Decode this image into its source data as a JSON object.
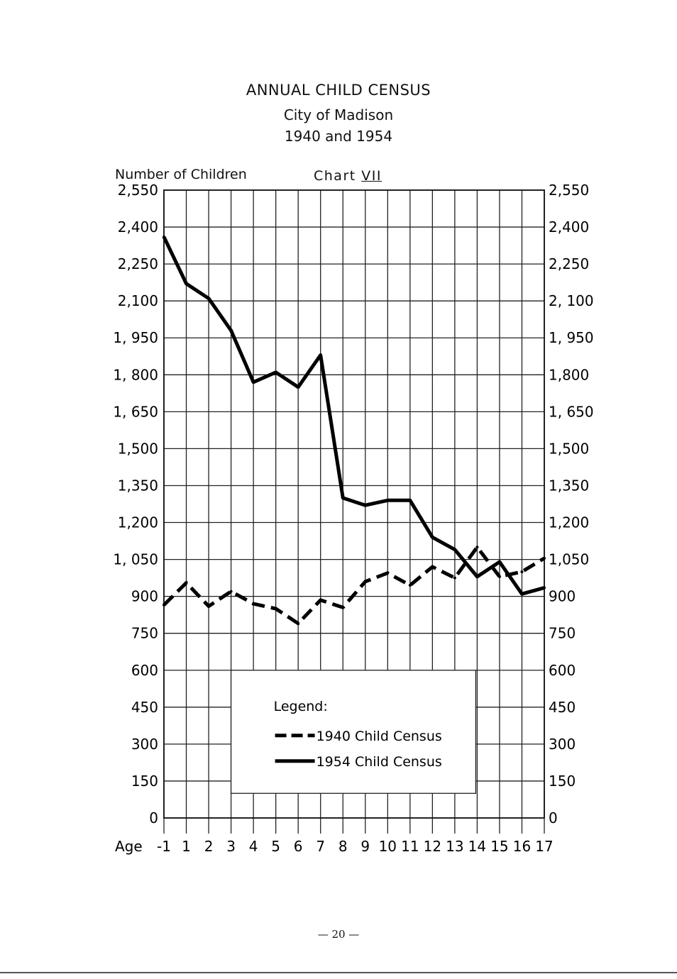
{
  "page": {
    "title": "ANNUAL CHILD CENSUS",
    "subtitle_1": "City of Madison",
    "subtitle_2": "1940 and 1954",
    "chart_label": "Chart",
    "chart_number": "VII",
    "footer": "— 20 —"
  },
  "chart_data": {
    "type": "line",
    "title": "ANNUAL CHILD CENSUS",
    "ylabel": "Number of Children",
    "xlabel": "Age",
    "x": [
      -1,
      1,
      2,
      3,
      4,
      5,
      6,
      7,
      8,
      9,
      10,
      11,
      12,
      13,
      14,
      15,
      16,
      17
    ],
    "x_tick_labels": [
      "-1",
      "1",
      "2",
      "3",
      "4",
      "5",
      "6",
      "7",
      "8",
      "9",
      "10",
      "11",
      "12",
      "13",
      "14",
      "15",
      "16",
      "17"
    ],
    "y_ticks": [
      0,
      150,
      300,
      450,
      600,
      750,
      900,
      1050,
      1200,
      1350,
      1500,
      1650,
      1800,
      1950,
      2100,
      2250,
      2400,
      2550
    ],
    "y_tick_labels": [
      "0",
      "150",
      "300",
      "450",
      "600",
      "750",
      "900",
      "1, 050",
      "1,200",
      "1,350",
      "1,500",
      "1, 650",
      "1, 800",
      "1, 950",
      "2,100",
      "2,250",
      "2,400",
      "2,550"
    ],
    "y_tick_labels_right": [
      "0",
      "150",
      "300",
      "450",
      "600",
      "750",
      "900",
      "1,050",
      "1,200",
      "1,350",
      "1,500",
      "1, 650",
      "1,800",
      "1, 950",
      "2, 100",
      "2,250",
      "2,400",
      "2,550"
    ],
    "ylim": [
      0,
      2550
    ],
    "grid": true,
    "legend": {
      "title": "Legend:",
      "position": "center-bottom"
    },
    "series": [
      {
        "name": "1940 Child Census",
        "style": "dashed",
        "values": [
          865,
          955,
          860,
          920,
          870,
          850,
          790,
          885,
          855,
          960,
          995,
          945,
          1020,
          975,
          1100,
          980,
          1000,
          1055
        ]
      },
      {
        "name": "1954 Child Census",
        "style": "solid",
        "values": [
          2360,
          2170,
          2110,
          1980,
          1770,
          1810,
          1750,
          1880,
          1300,
          1270,
          1290,
          1290,
          1140,
          1090,
          980,
          1040,
          910,
          935
        ]
      }
    ]
  }
}
